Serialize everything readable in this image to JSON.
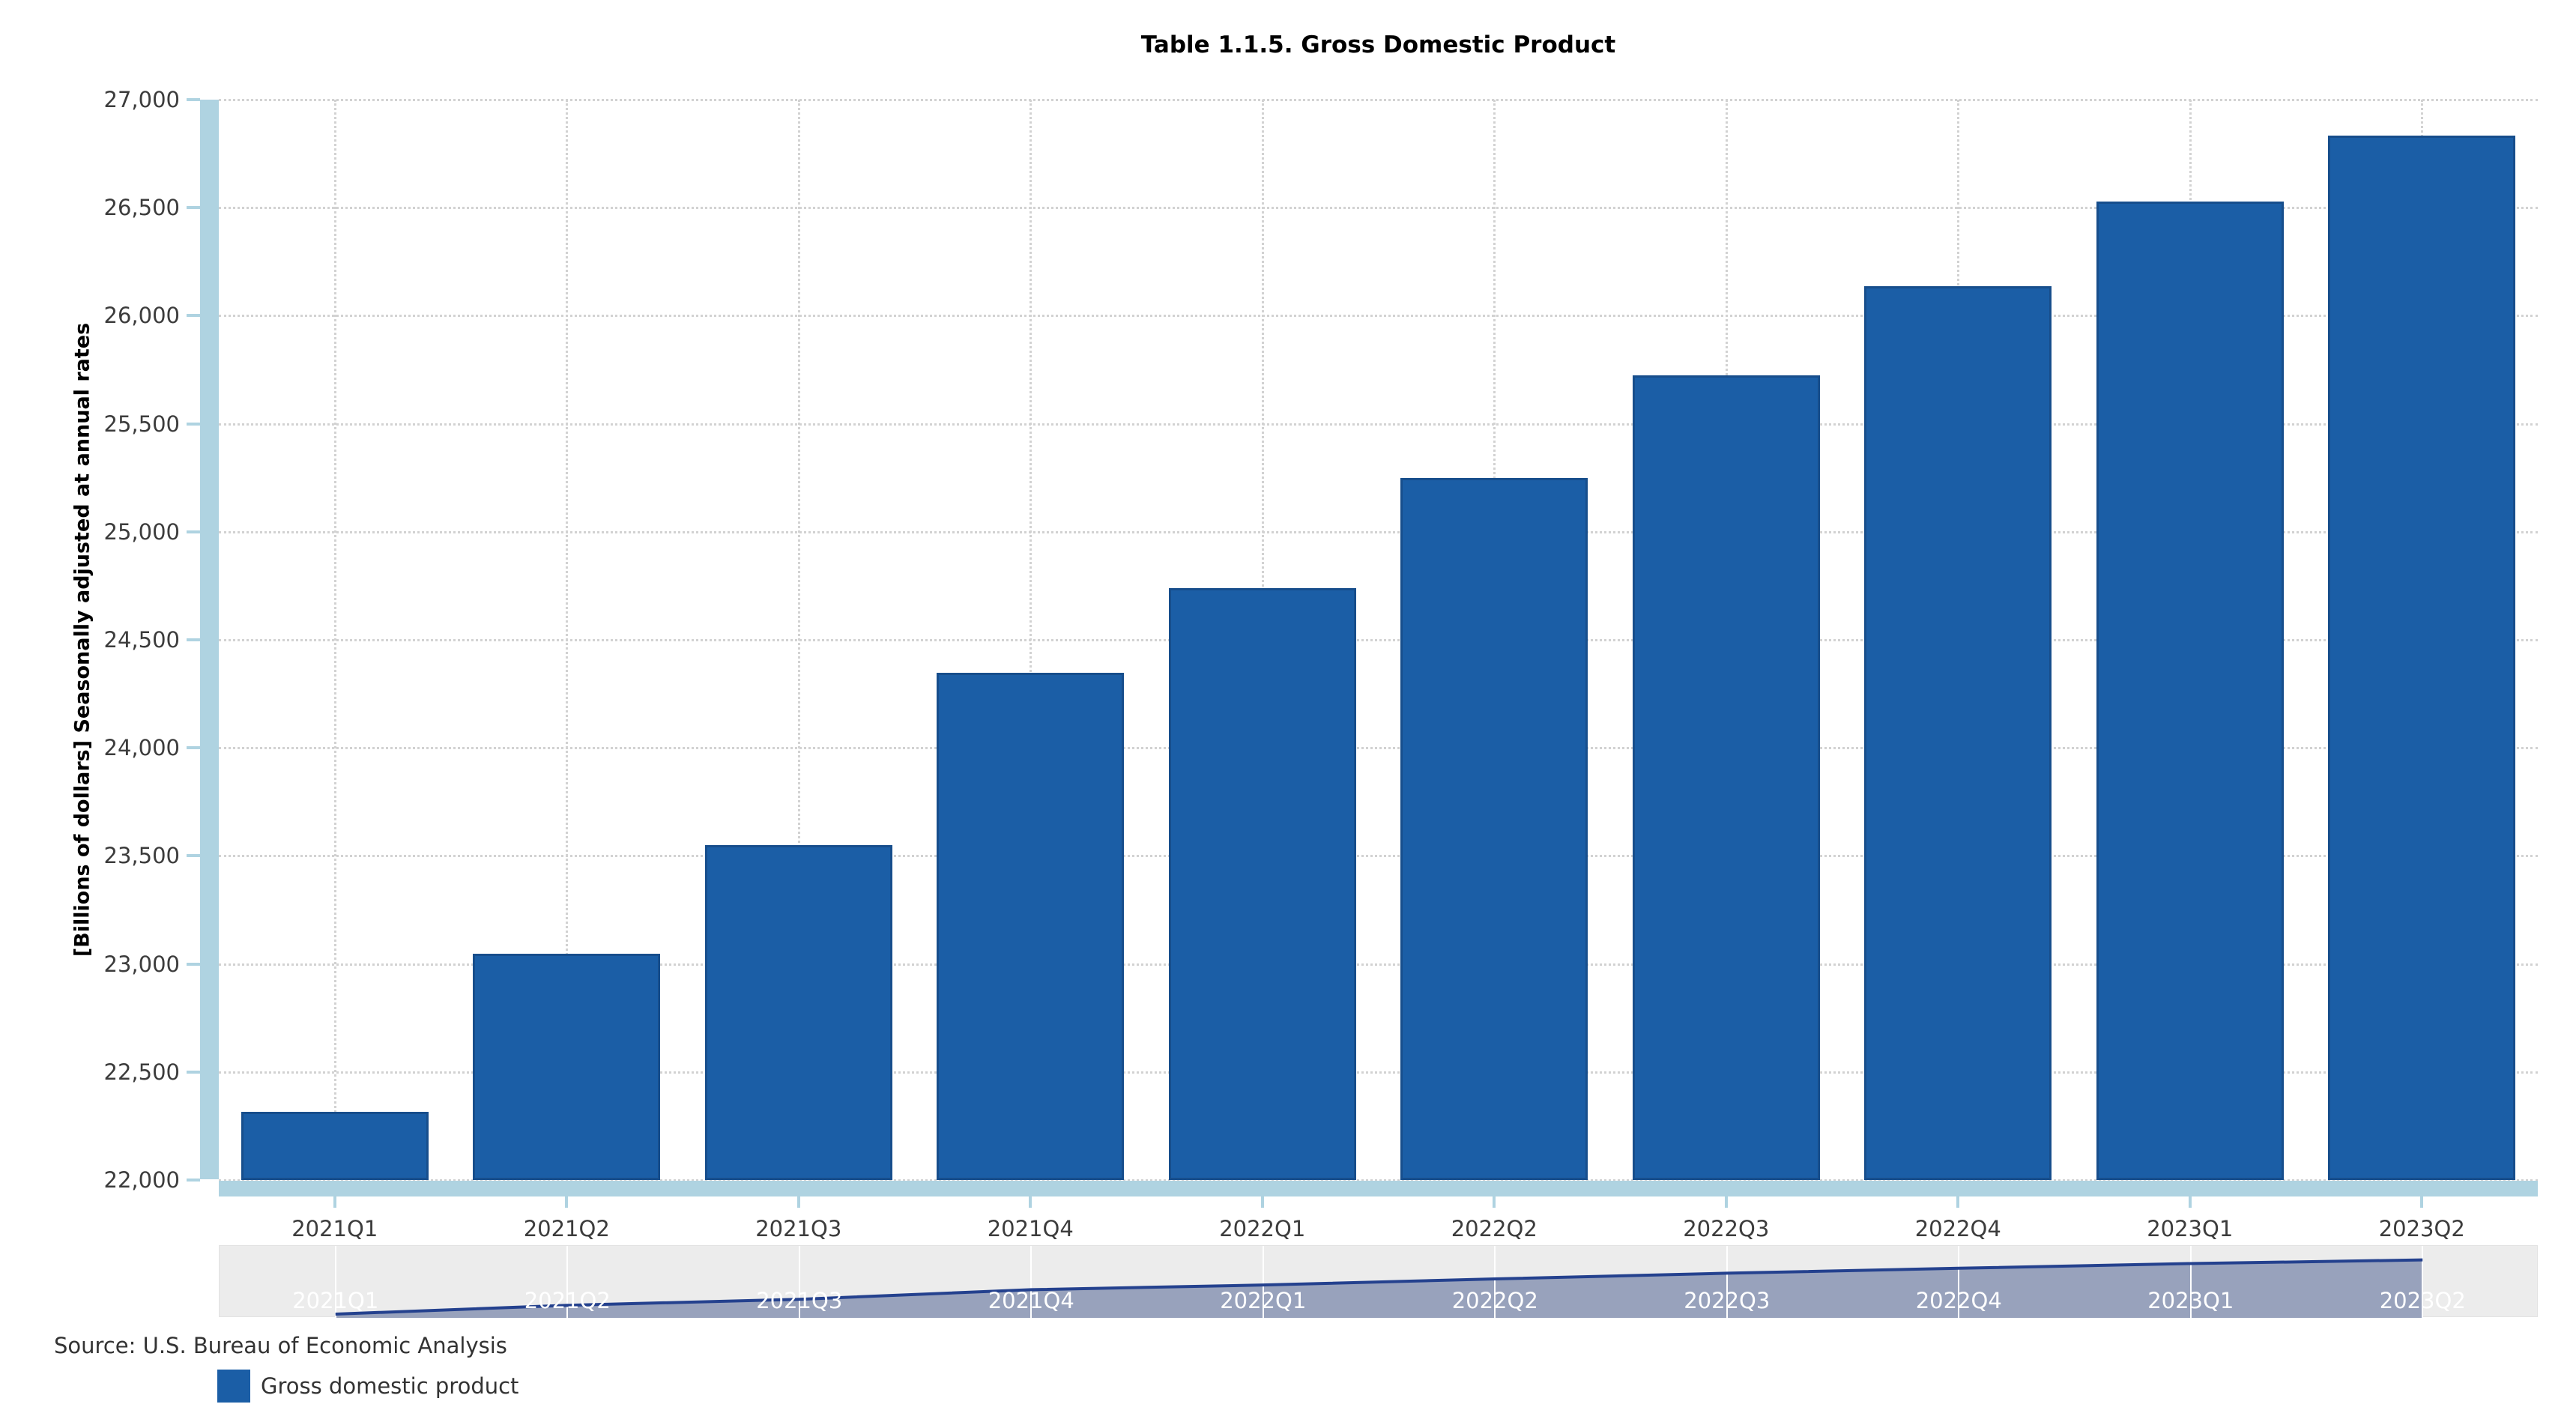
{
  "meta": {
    "source": "Source: U.S. Bureau of Economic Analysis"
  },
  "legend": {
    "label": "Gross domestic product"
  },
  "colors": {
    "series_fill": "#1B5EA6",
    "series_border": "#174E8C",
    "axis_band": "#AFD3E1",
    "grid": "#D2D2D2",
    "nav_bg": "#ECECEC",
    "nav_border": "#E2E2E2",
    "nav_line": "#24418E",
    "nav_fill": "#98A2BC",
    "nav_label": "#FFFFFF",
    "tick_text": "#3C3C3C",
    "title_text": "#000000"
  },
  "chart_data": {
    "type": "bar",
    "title": "Table 1.1.5. Gross Domestic Product",
    "categories": [
      "2021Q1",
      "2021Q2",
      "2021Q3",
      "2021Q4",
      "2022Q1",
      "2022Q2",
      "2022Q3",
      "2022Q4",
      "2023Q1",
      "2023Q2"
    ],
    "series": [
      {
        "name": "Gross domestic product",
        "values": [
          22313.9,
          23046.9,
          23550.4,
          24349.1,
          24740.5,
          25248.5,
          25723.9,
          26138.0,
          26529.8,
          26834.3
        ]
      }
    ],
    "xlabel": "",
    "ylabel": "[Billions of dollars] Seasonally adjusted at annual rates",
    "ylim": [
      22000,
      27000
    ],
    "ytick_step": 500,
    "ytick_labels": [
      "22,000",
      "22,500",
      "23,000",
      "23,500",
      "24,000",
      "24,500",
      "25,000",
      "25,500",
      "26,000",
      "26,500",
      "27,000"
    ],
    "grid": true,
    "legend_position": "bottom-left",
    "navigator": {
      "labels": [
        "2021Q1",
        "2021Q2",
        "2021Q3",
        "2021Q4",
        "2022Q1",
        "2022Q2",
        "2022Q3",
        "2022Q4",
        "2023Q1",
        "2023Q2"
      ],
      "ylim": [
        22000,
        28000
      ]
    }
  }
}
